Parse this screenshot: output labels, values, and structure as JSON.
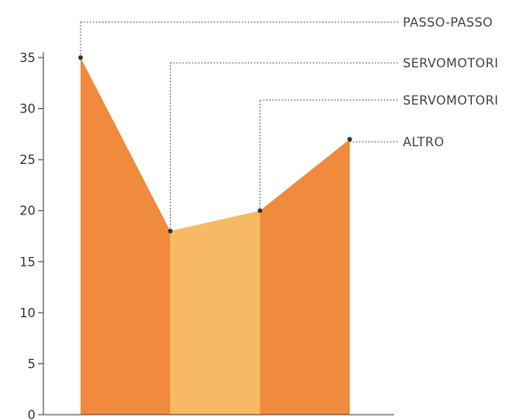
{
  "chart_data": {
    "type": "area",
    "title": "",
    "xlabel": "",
    "ylabel": "",
    "ylim": [
      0,
      35
    ],
    "y_ticks": [
      0,
      5,
      10,
      15,
      20,
      25,
      30,
      35
    ],
    "grid": false,
    "points": [
      {
        "x": 1,
        "y": 35,
        "label": "PASSO-PASSO"
      },
      {
        "x": 2,
        "y": 18,
        "label": "SERVOMOTORI"
      },
      {
        "x": 3,
        "y": 20,
        "label": "SERVOMOTORI"
      },
      {
        "x": 4,
        "y": 27,
        "label": "ALTRO"
      }
    ],
    "segments": [
      {
        "from": 1,
        "to": 2,
        "color": "#f08a3c"
      },
      {
        "from": 2,
        "to": 3,
        "color": "#f7b964"
      },
      {
        "from": 3,
        "to": 4,
        "color": "#f08a3c"
      }
    ],
    "marker_color": "#333333",
    "axis_color": "#444444",
    "leader_color": "#555555"
  }
}
